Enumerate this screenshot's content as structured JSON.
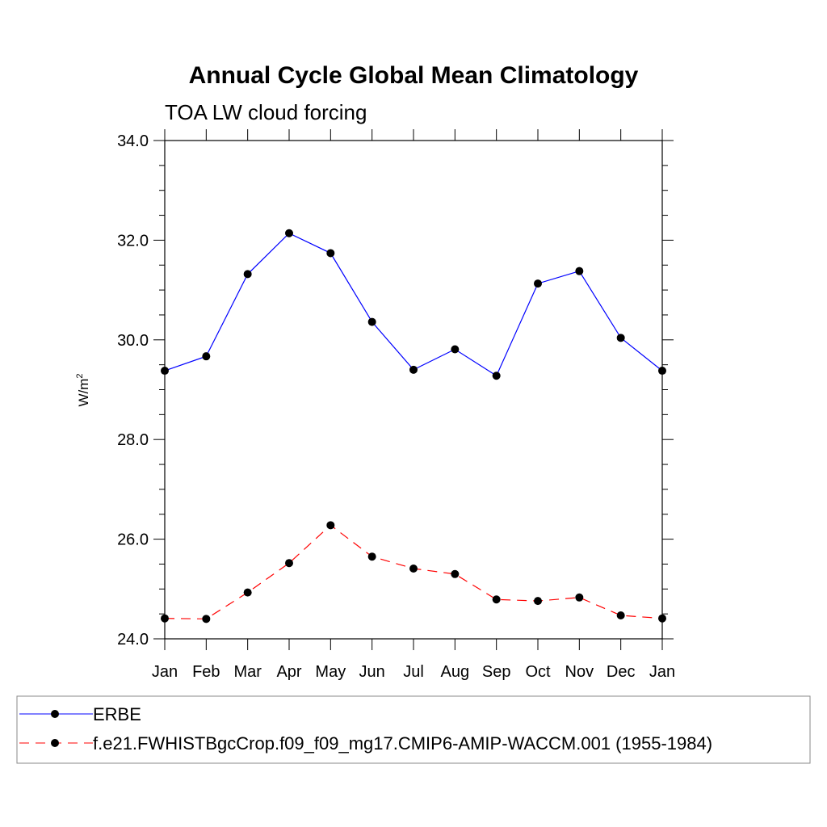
{
  "chart_data": {
    "type": "line",
    "title": "Annual Cycle Global Mean Climatology",
    "subtitle": "TOA LW cloud forcing",
    "xlabel": "",
    "ylabel": "W/m",
    "ylabel_sup": "2",
    "ylim": [
      24.0,
      34.0
    ],
    "yticks": [
      "24.0",
      "26.0",
      "28.0",
      "30.0",
      "32.0",
      "34.0"
    ],
    "categories": [
      "Jan",
      "Feb",
      "Mar",
      "Apr",
      "May",
      "Jun",
      "Jul",
      "Aug",
      "Sep",
      "Oct",
      "Nov",
      "Dec",
      "Jan"
    ],
    "series": [
      {
        "name": "ERBE",
        "color": "#0000ff",
        "dash": "solid",
        "values": [
          29.38,
          29.67,
          31.32,
          32.14,
          31.74,
          30.36,
          29.4,
          29.81,
          29.28,
          31.13,
          31.38,
          30.04,
          29.38
        ]
      },
      {
        "name": "f.e21.FWHISTBgcCrop.f09_f09_mg17.CMIP6-AMIP-WACCM.001 (1955-1984)",
        "color": "#ff0000",
        "dash": "dashed",
        "values": [
          24.41,
          24.4,
          24.93,
          25.52,
          26.28,
          25.65,
          25.41,
          25.3,
          24.79,
          24.76,
          24.83,
          24.47,
          24.41
        ]
      }
    ],
    "legend_position": "bottom"
  }
}
